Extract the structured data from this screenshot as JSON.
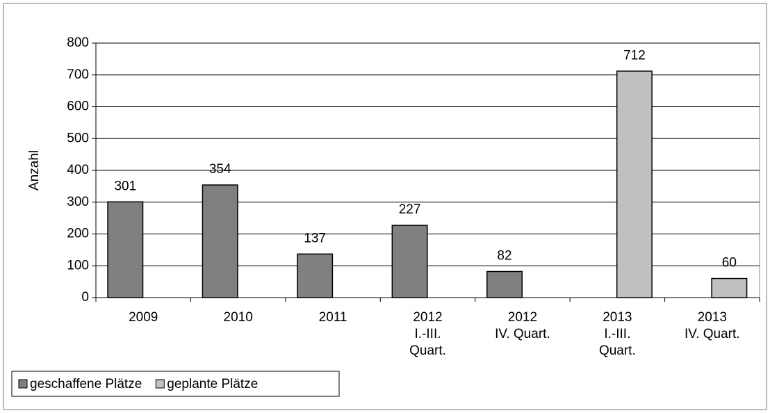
{
  "chart_data": {
    "type": "bar",
    "y_label": "Anzahl",
    "categories": [
      "2009",
      "2010",
      "2011",
      "2012\nI.-III.\nQuart.",
      "2012\nIV. Quart.",
      "2013\nI.-III.\nQuart.",
      "2013\nIV. Quart."
    ],
    "series": [
      {
        "name": "geschaffene Plätze",
        "color": "#808080",
        "values": [
          301,
          354,
          137,
          227,
          82,
          null,
          null
        ]
      },
      {
        "name": "geplante Plätze",
        "color": "#c0c0c0",
        "values": [
          null,
          null,
          null,
          null,
          null,
          712,
          60
        ]
      }
    ],
    "ylim": [
      0,
      800
    ],
    "yticks": [
      0,
      100,
      200,
      300,
      400,
      500,
      600,
      700,
      800
    ],
    "grid": true,
    "legend": "bottom-left"
  }
}
